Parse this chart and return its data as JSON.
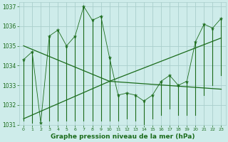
{
  "title": "Graphe pression niveau de la mer (hPa)",
  "background_color": "#ceecea",
  "grid_color": "#aacfcc",
  "line_color": "#1a6b1a",
  "y_values": [
    1034.3,
    1034.7,
    1031.1,
    1035.5,
    1035.8,
    1035.0,
    1035.5,
    1037.0,
    1036.3,
    1036.5,
    1034.4,
    1032.5,
    1032.6,
    1032.5,
    1032.2,
    1032.5,
    1033.2,
    1033.5,
    1033.0,
    1033.2,
    1035.2,
    1036.1,
    1035.9,
    1036.4
  ],
  "low_values": [
    1031.2,
    1031.1,
    1031.1,
    1031.2,
    1031.2,
    1031.2,
    1031.2,
    1031.2,
    1031.2,
    1031.2,
    1031.2,
    1031.2,
    1031.3,
    1031.2,
    1031.0,
    1031.3,
    1031.5,
    1031.8,
    1031.5,
    1031.5,
    1031.5,
    1032.5,
    1033.0,
    1033.5
  ],
  "x_values": [
    0,
    1,
    2,
    3,
    4,
    5,
    6,
    7,
    8,
    9,
    10,
    11,
    12,
    13,
    14,
    15,
    16,
    17,
    18,
    19,
    20,
    21,
    22,
    23
  ],
  "ylim": [
    1031.0,
    1037.2
  ],
  "ytick_vals": [
    1031,
    1032,
    1033,
    1034,
    1035,
    1036,
    1037
  ],
  "env_lines": [
    {
      "x": [
        0,
        10
      ],
      "y": [
        1035.0,
        1033.2
      ]
    },
    {
      "x": [
        0,
        10
      ],
      "y": [
        1031.3,
        1033.2
      ]
    },
    {
      "x": [
        10,
        23
      ],
      "y": [
        1033.2,
        1035.4
      ]
    },
    {
      "x": [
        10,
        23
      ],
      "y": [
        1033.2,
        1032.8
      ]
    }
  ]
}
